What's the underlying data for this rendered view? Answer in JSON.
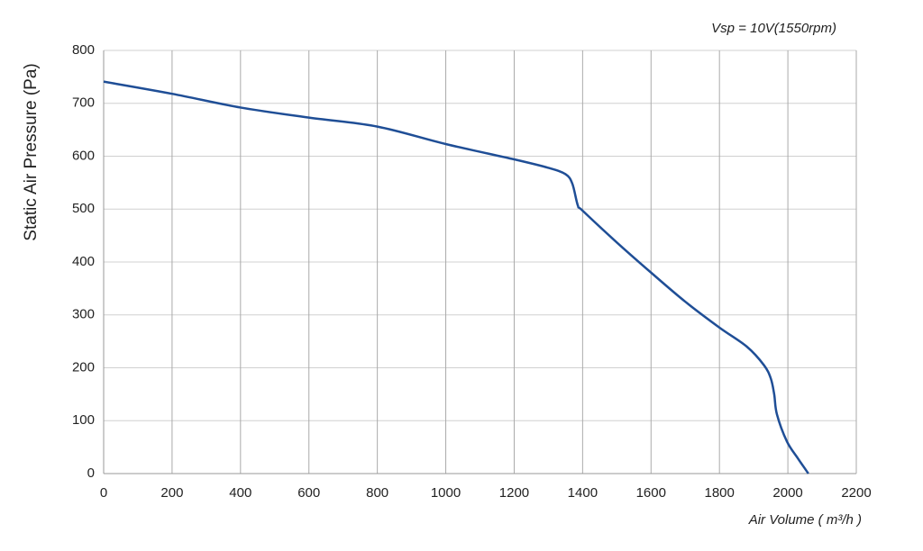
{
  "chart_data": {
    "type": "line",
    "annotation": "Vsp = 10V(1550rpm)",
    "x_label": "Air Volume ( m³/h )",
    "y_label": "Static Air Pressure  (Pa)",
    "xlim": [
      0,
      2200
    ],
    "ylim": [
      0,
      800
    ],
    "xticks": [
      0,
      200,
      400,
      600,
      800,
      1000,
      1200,
      1400,
      1600,
      1800,
      2000,
      2200
    ],
    "yticks": [
      0,
      100,
      200,
      300,
      400,
      500,
      600,
      700,
      800
    ],
    "grid": true,
    "series": [
      {
        "color": "#1f4e96",
        "x": [
          0,
          200,
          400,
          600,
          800,
          1000,
          1200,
          1300,
          1350,
          1370,
          1386,
          1400,
          1500,
          1600,
          1700,
          1800,
          1880,
          1930,
          1950,
          1960,
          1968,
          1997,
          2030,
          2060
        ],
        "values": [
          741,
          718,
          692,
          673,
          656,
          623,
          594,
          578,
          566,
          548,
          507,
          497,
          437,
          380,
          325,
          276,
          240,
          205,
          180,
          150,
          112,
          61,
          28,
          0
        ]
      }
    ]
  }
}
